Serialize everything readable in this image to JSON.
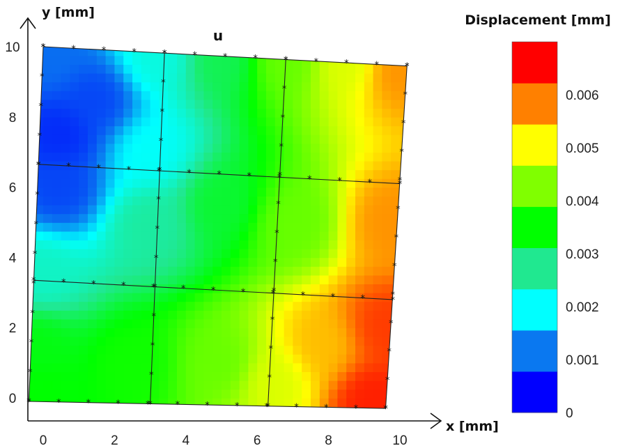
{
  "chart_data": {
    "type": "heatmap",
    "title": "u",
    "xlabel": "x [mm]",
    "ylabel": "y [mm]",
    "xlim": [
      -0.4,
      10.4
    ],
    "ylim": [
      -0.4,
      10.4
    ],
    "x_ticks": [
      "0",
      "2",
      "4",
      "6",
      "8",
      "10"
    ],
    "y_ticks": [
      "0",
      "2",
      "4",
      "6",
      "8",
      "10"
    ],
    "colorbar": {
      "title": "Displacement [mm]",
      "range": [
        0,
        0.007
      ],
      "tick_values": [
        0,
        0.001,
        0.002,
        0.003,
        0.004,
        0.005,
        0.006
      ],
      "tick_labels": [
        "0",
        "0.001",
        "0.002",
        "0.003",
        "0.004",
        "0.005",
        "0.006"
      ],
      "levels": [
        "#0000ff",
        "#0a78f0",
        "#00ffff",
        "#20e890",
        "#00ff00",
        "#80ff00",
        "#ffff00",
        "#ff8000",
        "#ff0000"
      ]
    },
    "mesh": {
      "corners": {
        "bottom_left": [
          -0.4,
          -0.1
        ],
        "bottom_right": [
          9.6,
          -0.3
        ],
        "top_right": [
          10.2,
          9.45
        ],
        "top_left": [
          0,
          10
        ]
      },
      "columns": 3,
      "rows": 3,
      "column_lines_x": [
        {
          "bottom": 3.0,
          "top": 3.4
        },
        {
          "bottom": 6.3,
          "top": 6.8
        }
      ],
      "row_lines_y": [
        {
          "left": 3.35,
          "right": 2.8
        },
        {
          "left": 6.65,
          "right": 6.1
        }
      ]
    },
    "field_samples": [
      {
        "x": 0.2,
        "y": 9.8,
        "u": 0.0008
      },
      {
        "x": 0.5,
        "y": 7.5,
        "u": 0.0003
      },
      {
        "x": 0.5,
        "y": 6.0,
        "u": 0.0005
      },
      {
        "x": 1.5,
        "y": 8.5,
        "u": 0.0005
      },
      {
        "x": 3.2,
        "y": 9.7,
        "u": 0.002
      },
      {
        "x": 3.0,
        "y": 7.0,
        "u": 0.0018
      },
      {
        "x": 5.0,
        "y": 9.6,
        "u": 0.003
      },
      {
        "x": 6.8,
        "y": 9.6,
        "u": 0.0042
      },
      {
        "x": 8.5,
        "y": 9.5,
        "u": 0.005
      },
      {
        "x": 9.9,
        "y": 9.3,
        "u": 0.006
      },
      {
        "x": 0.0,
        "y": 3.5,
        "u": 0.0022
      },
      {
        "x": 3.0,
        "y": 5.0,
        "u": 0.0025
      },
      {
        "x": 5.0,
        "y": 5.5,
        "u": 0.0032
      },
      {
        "x": 7.0,
        "y": 5.0,
        "u": 0.0042
      },
      {
        "x": 9.8,
        "y": 5.0,
        "u": 0.006
      },
      {
        "x": -0.2,
        "y": 1.5,
        "u": 0.0034
      },
      {
        "x": 0.0,
        "y": 0.2,
        "u": 0.0035
      },
      {
        "x": 2.5,
        "y": 1.0,
        "u": 0.0036
      },
      {
        "x": 5.0,
        "y": 1.0,
        "u": 0.0042
      },
      {
        "x": 6.5,
        "y": 0.5,
        "u": 0.005
      },
      {
        "x": 7.8,
        "y": 1.5,
        "u": 0.0057
      },
      {
        "x": 9.2,
        "y": 0.0,
        "u": 0.0068
      },
      {
        "x": 9.6,
        "y": 2.0,
        "u": 0.0066
      }
    ]
  }
}
